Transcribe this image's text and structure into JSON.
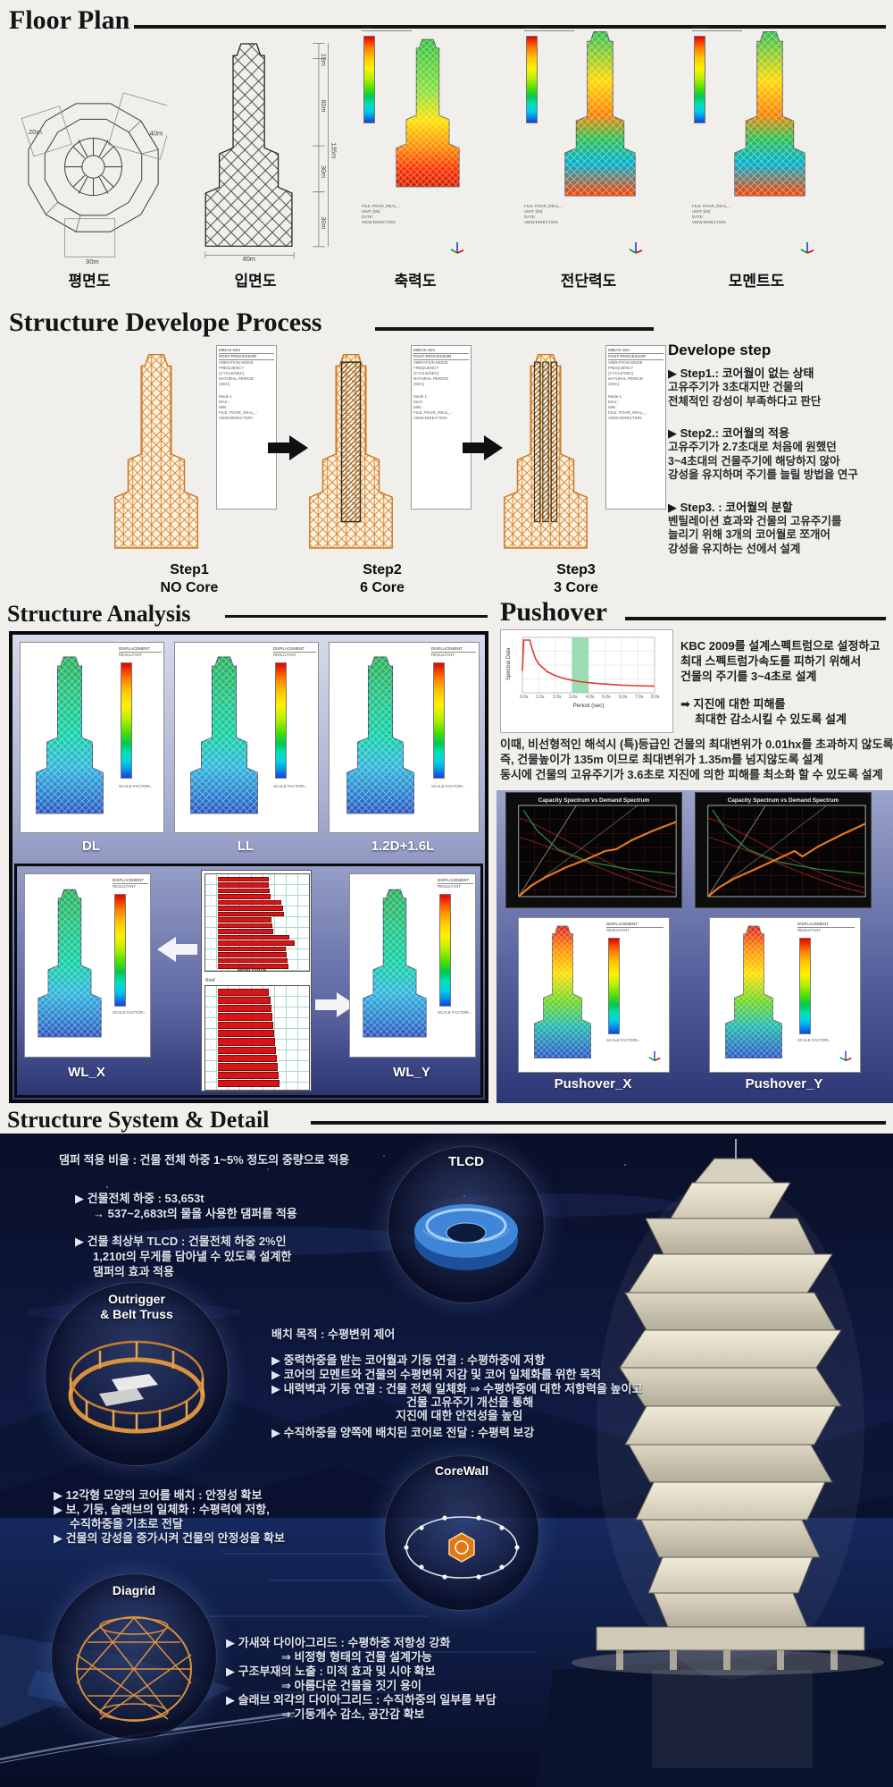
{
  "floor_plan": {
    "title": "Floor Plan",
    "plan": {
      "label": "평면도",
      "dim_left": "20m",
      "dim_right": "40m",
      "dim_bottom": "30m"
    },
    "elevation": {
      "label": "입면도",
      "dims_right": [
        "15m",
        "60m",
        "30m",
        "30m"
      ],
      "dim_total": "135m",
      "dim_bottom": "80m"
    },
    "axial": {
      "label": "축력도",
      "header": "AXIAL"
    },
    "shear": {
      "label": "전단력도",
      "header": "SHEAR"
    },
    "moment": {
      "label": "모멘트도",
      "header": "MOMENT"
    }
  },
  "process": {
    "title": "Structure Develope Process",
    "steps": [
      {
        "name": "Step1",
        "core": "NO Core"
      },
      {
        "name": "Step2",
        "core": "6 Core"
      },
      {
        "name": "Step3",
        "core": "3 Core"
      }
    ],
    "note": {
      "heading": "Develope step",
      "groups": [
        {
          "title": "▶ Step1.: 코어월이 없는 상태",
          "lines": [
            "고유주기가 3초대지만 건물의",
            "전체적인 강성이 부족하다고 판단"
          ]
        },
        {
          "title": "▶ Step2.: 코어월의 적용",
          "lines": [
            "고유주기가 2.7초대로 처음에 원했던",
            "3~4초대의 건물주기에 해당하지 않아",
            "강성을 유지하며 주기를 늘릴 방법을 연구"
          ]
        },
        {
          "title": "▶ Step3. : 코어월의 분할",
          "lines": [
            "벤틸레이션 효과와 건물의 고유주기를",
            "늘리기 위해 3개의 코어월로 쪼개어",
            "강성을 유지하는 선에서 설계"
          ]
        }
      ]
    }
  },
  "analysis": {
    "title": "Structure Analysis",
    "cases": [
      "DL",
      "LL",
      "1.2D+1.6L"
    ],
    "wind_cases": [
      "WL_X",
      "WL_Y"
    ]
  },
  "pushover": {
    "title": "Pushover",
    "kbc": [
      "KBC 2009를 설계스펙트럼으로 설정하고",
      "최대 스펙트럼가속도를 피하기 위해서",
      "건물의 주기를 3~4초로 설계"
    ],
    "arrow": [
      "➡ 지진에 대한 피해를",
      "최대한 감소시킬 수 있도록 설계"
    ],
    "para": [
      "이때, 비선형적인 해석시 (특)등급인 건물의 최대변위가 0.01hx를 초과하지 않도록 설계",
      "즉, 건물높이가 135m 이므로 최대변위가 1.35m를 넘지않도록 설계",
      "동시에 건물의 고유주기가 3.6초로 지진에 의한 피해를 최소화 할 수 있도록 설계"
    ],
    "cases": [
      "Pushover_X",
      "Pushover_Y"
    ]
  },
  "system_detail": {
    "title": "Structure System & Detail",
    "tlcd": {
      "label": "TLCD",
      "intro": "댐퍼 적용 비율 : 건물 전체 하중 1~5% 정도의 중량으로 적용",
      "lines": [
        "▶ 건물전체 하중 : 53,653t",
        "→ 537~2,683t의 물을 사용한 댐퍼를 적용",
        "▶ 건물 최상부 TLCD : 건물전체 하중 2%인",
        "1,210t의 무게를 담아낼 수 있도록 설계한",
        "댐퍼의 효과 적용"
      ]
    },
    "outrigger": {
      "label_line1": "Outrigger",
      "label_line2": "& Belt Truss",
      "purpose": "배치 목적 : 수평변위 제어",
      "lines": [
        "▶ 중력하중을 받는 코어월과 기둥 연결 : 수평하중에 저항",
        "▶ 코어의 모멘트와 건물의 수평변위 저감 및 코어 일체화를 위한 목적",
        "▶ 내력벽과 기둥 연결 : 건물 전체 일체화 ⇒ 수평하중에 대한 저항력을 높이고",
        "건물 고유주기 개선을 통해",
        "지진에 대한 안전성을 높임",
        "▶ 수직하중을 양쪽에 배치된 코어로 전달 : 수평력 보강"
      ]
    },
    "corewall": {
      "label": "CoreWall",
      "lines": [
        "▶ 12각형 모양의 코어를 배치 : 안정성 확보",
        "▶ 보, 기둥, 슬래브의 일체화 : 수평력에 저항,",
        "수직하중을 기초로 전달",
        "▶ 건물의 강성을 증가시켜 건물의 안정성을 확보"
      ]
    },
    "diagrid": {
      "label": "Diagrid",
      "lines": [
        "▶ 가새와 다이아그리드 : 수평하중 저항성 강화",
        "⇒ 비정형 형태의 건물 설계가능",
        "▶ 구조부재의 노출 : 미적 효과 및 시야 확보",
        "⇒ 아름다운 건물을 짓기 용이",
        "▶ 슬래브 외각의 다이아그리드 : 수직하중의 일부를 부담",
        "⇒ 기둥개수 감소, 공간감 확보"
      ]
    }
  },
  "midas_panel": {
    "lines": [
      "MIDAS Gen",
      "POST-PROCESSOR",
      "VIBRATION MODE",
      "FREQUENCY",
      "(CYCLE/SEC)",
      "NATURAL PERIOD",
      "(SEC)"
    ]
  },
  "model_panel": {
    "lines": [
      "Mode 1",
      "MAX :",
      "MIN :",
      "FILE: POVR_REAL_-",
      "UNIT: [kN]",
      "DATE:",
      "VIEW-DIRECTION"
    ]
  },
  "legend": {
    "header": "DISPLACEMENT",
    "sub": "RESULTANT",
    "scale": "SCALE FACTOR="
  },
  "colors": {
    "accent_orange": "#d9822b",
    "panel_blue_top": "#d6daea",
    "panel_blue_bottom": "#353f7c",
    "bar_red": "#d81414",
    "spectrum_line": "#e23a2e",
    "spectrum_band": "#8fd9a8",
    "night_sky": "#0a0f28"
  },
  "chart_data": [
    {
      "id": "design_spectrum",
      "type": "line",
      "xlabel": "Period (sec)",
      "ylabel": "Spectral Data",
      "x_range": [
        0,
        8
      ],
      "y_range": [
        0,
        0.2
      ],
      "xticks": [
        "0.0s",
        "1.0s",
        "2.0s",
        "3.0s",
        "4.0s",
        "5.0s",
        "6.0s",
        "7.0s",
        "8.0s"
      ],
      "highlight_band_sec": [
        3,
        4
      ],
      "curve": [
        [
          0.0,
          0.075
        ],
        [
          0.08,
          0.19
        ],
        [
          0.45,
          0.19
        ],
        [
          0.6,
          0.155
        ],
        [
          0.8,
          0.12
        ],
        [
          1.0,
          0.1
        ],
        [
          1.5,
          0.072
        ],
        [
          2.0,
          0.057
        ],
        [
          2.5,
          0.047
        ],
        [
          3.0,
          0.04
        ],
        [
          3.5,
          0.035
        ],
        [
          4.0,
          0.031
        ],
        [
          5.0,
          0.026
        ],
        [
          6.0,
          0.022
        ],
        [
          7.0,
          0.02
        ],
        [
          8.0,
          0.018
        ]
      ]
    },
    {
      "id": "wind_force",
      "type": "bar",
      "orientation": "horizontal",
      "xlabel": "Wind Force",
      "bar_color": "#d81414",
      "charts": [
        {
          "name": "upper",
          "values": [
            0.56,
            0.56,
            0.57,
            0.58,
            0.7,
            0.72,
            0.73,
            0.59,
            0.6,
            0.61,
            0.79,
            0.85,
            0.75,
            0.76,
            0.77,
            0.78
          ]
        },
        {
          "name": "lower",
          "first_tick": "Roof",
          "values": [
            0.56,
            0.58,
            0.59,
            0.6,
            0.61,
            0.62,
            0.63,
            0.64,
            0.65,
            0.66,
            0.67,
            0.68
          ]
        }
      ]
    },
    {
      "id": "capacity_x",
      "type": "line",
      "title": "Capacity Spectrum vs Demand Spectrum",
      "capacity_curve": [
        [
          0,
          0
        ],
        [
          0.08,
          0.12
        ],
        [
          0.18,
          0.22
        ],
        [
          0.3,
          0.32
        ],
        [
          0.42,
          0.4
        ],
        [
          0.55,
          0.5
        ],
        [
          0.62,
          0.52
        ],
        [
          0.72,
          0.62
        ],
        [
          0.85,
          0.72
        ],
        [
          1.0,
          0.82
        ]
      ],
      "demand_curve": [
        [
          0.03,
          0.95
        ],
        [
          0.12,
          0.72
        ],
        [
          0.25,
          0.52
        ],
        [
          0.45,
          0.38
        ],
        [
          0.7,
          0.3
        ],
        [
          1.0,
          0.25
        ]
      ]
    },
    {
      "id": "capacity_y",
      "type": "line",
      "title": "Capacity Spectrum vs Demand Spectrum",
      "capacity_curve": [
        [
          0,
          0
        ],
        [
          0.07,
          0.1
        ],
        [
          0.17,
          0.2
        ],
        [
          0.3,
          0.3
        ],
        [
          0.45,
          0.42
        ],
        [
          0.55,
          0.5
        ],
        [
          0.6,
          0.44
        ],
        [
          0.7,
          0.55
        ],
        [
          0.85,
          0.68
        ],
        [
          1.0,
          0.8
        ]
      ],
      "demand_curve": [
        [
          0.03,
          0.95
        ],
        [
          0.12,
          0.72
        ],
        [
          0.25,
          0.52
        ],
        [
          0.45,
          0.38
        ],
        [
          0.7,
          0.3
        ],
        [
          1.0,
          0.25
        ]
      ]
    }
  ]
}
